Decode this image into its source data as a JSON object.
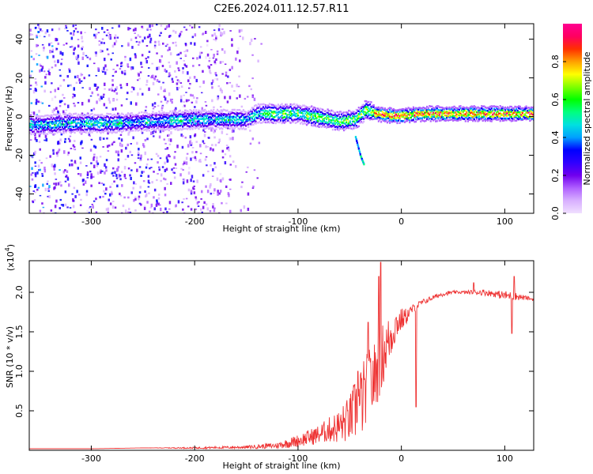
{
  "title": "C2E6.2024.011.12.57.R11",
  "chart_data": [
    {
      "type": "heatmap",
      "xlabel": "Height of straight line (km)",
      "ylabel": "Frequency (Hz)",
      "xlim": [
        -360,
        128
      ],
      "ylim": [
        -50,
        48
      ],
      "x_ticks": [
        -300,
        -200,
        -100,
        0,
        100
      ],
      "x_tick_labels": [
        "-300",
        "-200",
        "-100",
        "0",
        "100"
      ],
      "y_ticks": [
        -40,
        -20,
        0,
        20,
        40
      ],
      "y_tick_labels": [
        "-40",
        "-20",
        "0",
        "20",
        "40"
      ],
      "colorbar": {
        "label": "Normalized spectral amplitude",
        "range": [
          0,
          1
        ],
        "ticks": [
          0,
          0.2,
          0.4,
          0.6,
          0.8
        ],
        "tick_labels": [
          "0.0",
          "0.2",
          "0.4",
          "0.6",
          "0.8"
        ],
        "colors": [
          "#f0e0ff",
          "#d8b0ff",
          "#b060ff",
          "#7000ee",
          "#3000ff",
          "#0000ff",
          "#00a0ff",
          "#00e0e0",
          "#00ff80",
          "#00ff00",
          "#80ff00",
          "#ffff00",
          "#ffa000",
          "#ff3000",
          "#ff0060",
          "#ff0090"
        ]
      },
      "ridge": {
        "x": [
          -360,
          -320,
          -280,
          -240,
          -200,
          -170,
          -150,
          -140,
          -120,
          -100,
          -80,
          -60,
          -45,
          -35,
          -25,
          -10,
          0,
          20,
          50,
          80,
          100,
          128
        ],
        "y": [
          -4,
          -3,
          -3,
          -2,
          -1,
          -1,
          -1,
          2,
          2,
          2,
          0,
          -2,
          -1,
          4,
          2,
          1,
          1,
          2,
          2,
          2,
          2,
          2
        ]
      },
      "branch": {
        "x": [
          -45,
          -42,
          -40,
          -37
        ],
        "y": [
          -10,
          -16,
          -20,
          -24
        ]
      },
      "grid": false
    },
    {
      "type": "line",
      "xlabel": "Height of straight line (km)",
      "ylabel": "SNR (10 * v/v)",
      "y_multiplier_label": "(x10",
      "y_multiplier_exp": "4",
      "xlim": [
        -360,
        128
      ],
      "ylim": [
        0,
        2.4
      ],
      "x_ticks": [
        -300,
        -200,
        -100,
        0,
        100
      ],
      "x_tick_labels": [
        "-300",
        "-200",
        "-100",
        "0",
        "100"
      ],
      "y_ticks": [
        0.5,
        1.0,
        1.5,
        2.0
      ],
      "y_tick_labels": [
        "0.5",
        "1.0",
        "1.5",
        "2.0"
      ],
      "series": [
        {
          "color": "#ee3333",
          "x": [
            -360,
            -300,
            -250,
            -200,
            -150,
            -120,
            -100,
            -80,
            -70,
            -60,
            -50,
            -45,
            -40,
            -35,
            -30,
            -25,
            -20,
            -15,
            -10,
            -5,
            0,
            5,
            10,
            20,
            30,
            40,
            50,
            60,
            70,
            80,
            90,
            100,
            110,
            120,
            128
          ],
          "y": [
            0.02,
            0.02,
            0.03,
            0.03,
            0.04,
            0.06,
            0.12,
            0.2,
            0.26,
            0.3,
            0.4,
            0.5,
            0.6,
            0.7,
            0.82,
            0.95,
            1.15,
            1.3,
            1.45,
            1.6,
            1.65,
            1.7,
            1.78,
            1.87,
            1.93,
            1.98,
            2.0,
            2.0,
            2.0,
            2.0,
            1.98,
            1.96,
            1.95,
            1.93,
            1.91
          ],
          "noise": [
            0,
            0,
            0,
            0.01,
            0.02,
            0.04,
            0.08,
            0.12,
            0.16,
            0.22,
            0.3,
            0.4,
            0.45,
            0.5,
            0.5,
            0.45,
            0.45,
            0.35,
            0.3,
            0.2,
            0.15,
            0.1,
            0.06,
            0.04,
            0.03,
            0.03,
            0.02,
            0.02,
            0.03,
            0.04,
            0.04,
            0.06,
            0.05,
            0.03,
            0.02
          ],
          "peaks": [
            {
              "x": -20,
              "y": 2.38
            },
            {
              "x": -22,
              "y": 2.2
            },
            {
              "x": -32,
              "y": 1.62
            },
            {
              "x": -42,
              "y": 1.0
            },
            {
              "x": 14,
              "y": 0.55
            },
            {
              "x": 107,
              "y": 1.48
            },
            {
              "x": 109,
              "y": 2.2
            },
            {
              "x": 70,
              "y": 2.12
            }
          ]
        }
      ],
      "grid": false
    }
  ]
}
